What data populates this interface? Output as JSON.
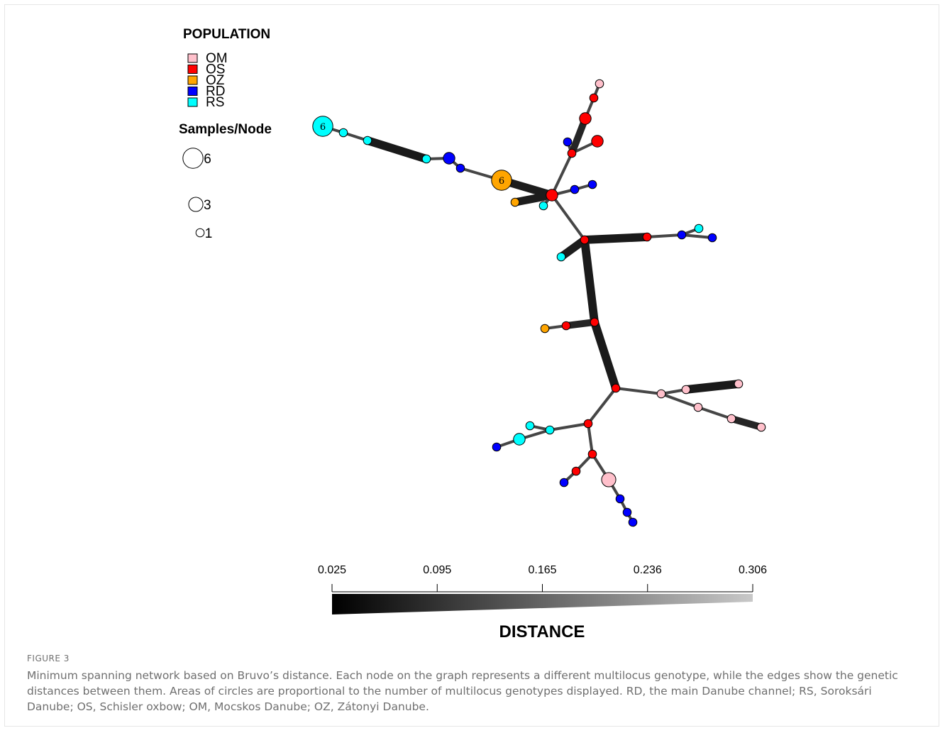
{
  "legend": {
    "population_title": "POPULATION",
    "populations": [
      {
        "code": "OM",
        "color": "#ffc0cb"
      },
      {
        "code": "OS",
        "color": "#ff0000"
      },
      {
        "code": "OZ",
        "color": "#ffa500"
      },
      {
        "code": "RD",
        "color": "#0000ff"
      },
      {
        "code": "RS",
        "color": "#00ffff"
      }
    ],
    "size_title": "Samples/Node",
    "sizes": [
      {
        "label": "6",
        "n": 6
      },
      {
        "label": "3",
        "n": 3
      },
      {
        "label": "1",
        "n": 1
      }
    ]
  },
  "network": {
    "nodes": [
      {
        "id": "n1",
        "pop": "RS",
        "n": 6,
        "label": "6"
      },
      {
        "id": "n2",
        "pop": "RS",
        "n": 1
      },
      {
        "id": "n3",
        "pop": "RS",
        "n": 1
      },
      {
        "id": "n4",
        "pop": "RS",
        "n": 1
      },
      {
        "id": "n5",
        "pop": "RD",
        "n": 2
      },
      {
        "id": "n6",
        "pop": "RD",
        "n": 1
      },
      {
        "id": "n7",
        "pop": "OZ",
        "n": 6,
        "label": "6"
      },
      {
        "id": "n8",
        "pop": "OS",
        "n": 2
      },
      {
        "id": "n9",
        "pop": "OZ",
        "n": 1
      },
      {
        "id": "n10",
        "pop": "RS",
        "n": 1
      },
      {
        "id": "n11",
        "pop": "RD",
        "n": 1
      },
      {
        "id": "n12",
        "pop": "RD",
        "n": 1
      },
      {
        "id": "n13",
        "pop": "OS",
        "n": 1
      },
      {
        "id": "n14",
        "pop": "RD",
        "n": 1
      },
      {
        "id": "n15",
        "pop": "OS",
        "n": 2
      },
      {
        "id": "n16",
        "pop": "OS",
        "n": 2
      },
      {
        "id": "n17",
        "pop": "OS",
        "n": 1
      },
      {
        "id": "n18",
        "pop": "OM",
        "n": 1
      },
      {
        "id": "n19",
        "pop": "OS",
        "n": 1
      },
      {
        "id": "n20",
        "pop": "RS",
        "n": 1
      },
      {
        "id": "n21",
        "pop": "OS",
        "n": 1
      },
      {
        "id": "n22",
        "pop": "RD",
        "n": 1
      },
      {
        "id": "n23",
        "pop": "RS",
        "n": 1
      },
      {
        "id": "n24",
        "pop": "RD",
        "n": 1
      },
      {
        "id": "n25",
        "pop": "OS",
        "n": 1
      },
      {
        "id": "n26",
        "pop": "OS",
        "n": 1
      },
      {
        "id": "n27",
        "pop": "OZ",
        "n": 1
      },
      {
        "id": "n28",
        "pop": "OS",
        "n": 1
      },
      {
        "id": "n29",
        "pop": "OM",
        "n": 1
      },
      {
        "id": "n30",
        "pop": "OM",
        "n": 1
      },
      {
        "id": "n31",
        "pop": "OM",
        "n": 1
      },
      {
        "id": "n32",
        "pop": "OM",
        "n": 1
      },
      {
        "id": "n33",
        "pop": "OM",
        "n": 1
      },
      {
        "id": "n34",
        "pop": "OM",
        "n": 1
      },
      {
        "id": "n35",
        "pop": "OS",
        "n": 1
      },
      {
        "id": "n36",
        "pop": "RS",
        "n": 1
      },
      {
        "id": "n37",
        "pop": "RS",
        "n": 1
      },
      {
        "id": "n38",
        "pop": "RS",
        "n": 2
      },
      {
        "id": "n39",
        "pop": "RD",
        "n": 1
      },
      {
        "id": "n40",
        "pop": "OS",
        "n": 1
      },
      {
        "id": "n41",
        "pop": "OS",
        "n": 1
      },
      {
        "id": "n42",
        "pop": "RD",
        "n": 1
      },
      {
        "id": "n43",
        "pop": "OM",
        "n": 3
      },
      {
        "id": "n44",
        "pop": "RD",
        "n": 1
      },
      {
        "id": "n45",
        "pop": "RD",
        "n": 1
      },
      {
        "id": "n46",
        "pop": "RD",
        "n": 1
      }
    ],
    "edges": [
      {
        "from": "n1",
        "to": "n2",
        "distance": 0.306
      },
      {
        "from": "n2",
        "to": "n3",
        "distance": 0.306
      },
      {
        "from": "n3",
        "to": "n4",
        "distance": 0.03
      },
      {
        "from": "n4",
        "to": "n5",
        "distance": 0.306
      },
      {
        "from": "n5",
        "to": "n6",
        "distance": 0.306
      },
      {
        "from": "n6",
        "to": "n7",
        "distance": 0.306
      },
      {
        "from": "n7",
        "to": "n8",
        "distance": 0.05
      },
      {
        "from": "n8",
        "to": "n9",
        "distance": 0.05
      },
      {
        "from": "n8",
        "to": "n10",
        "distance": 0.306
      },
      {
        "from": "n8",
        "to": "n11",
        "distance": 0.306
      },
      {
        "from": "n11",
        "to": "n12",
        "distance": 0.306
      },
      {
        "from": "n8",
        "to": "n13",
        "distance": 0.306
      },
      {
        "from": "n13",
        "to": "n14",
        "distance": 0.306
      },
      {
        "from": "n13",
        "to": "n15",
        "distance": 0.306
      },
      {
        "from": "n13",
        "to": "n16",
        "distance": 0.1
      },
      {
        "from": "n16",
        "to": "n17",
        "distance": 0.306
      },
      {
        "from": "n17",
        "to": "n18",
        "distance": 0.306
      },
      {
        "from": "n8",
        "to": "n19",
        "distance": 0.306
      },
      {
        "from": "n19",
        "to": "n20",
        "distance": 0.05
      },
      {
        "from": "n19",
        "to": "n21",
        "distance": 0.03
      },
      {
        "from": "n21",
        "to": "n22",
        "distance": 0.306
      },
      {
        "from": "n22",
        "to": "n23",
        "distance": 0.306
      },
      {
        "from": "n22",
        "to": "n24",
        "distance": 0.306
      },
      {
        "from": "n19",
        "to": "n25",
        "distance": 0.03
      },
      {
        "from": "n25",
        "to": "n26",
        "distance": 0.1
      },
      {
        "from": "n26",
        "to": "n27",
        "distance": 0.306
      },
      {
        "from": "n25",
        "to": "n28",
        "distance": 0.03
      },
      {
        "from": "n28",
        "to": "n29",
        "distance": 0.306
      },
      {
        "from": "n29",
        "to": "n30",
        "distance": 0.306
      },
      {
        "from": "n30",
        "to": "n31",
        "distance": 0.03
      },
      {
        "from": "n29",
        "to": "n32",
        "distance": 0.306
      },
      {
        "from": "n32",
        "to": "n33",
        "distance": 0.306
      },
      {
        "from": "n33",
        "to": "n34",
        "distance": 0.1
      },
      {
        "from": "n28",
        "to": "n35",
        "distance": 0.306
      },
      {
        "from": "n35",
        "to": "n36",
        "distance": 0.306
      },
      {
        "from": "n36",
        "to": "n37",
        "distance": 0.306
      },
      {
        "from": "n36",
        "to": "n38",
        "distance": 0.306
      },
      {
        "from": "n38",
        "to": "n39",
        "distance": 0.306
      },
      {
        "from": "n35",
        "to": "n40",
        "distance": 0.306
      },
      {
        "from": "n40",
        "to": "n41",
        "distance": 0.306
      },
      {
        "from": "n41",
        "to": "n42",
        "distance": 0.306
      },
      {
        "from": "n40",
        "to": "n43",
        "distance": 0.306
      },
      {
        "from": "n43",
        "to": "n44",
        "distance": 0.306
      },
      {
        "from": "n44",
        "to": "n45",
        "distance": 0.306
      },
      {
        "from": "n45",
        "to": "n46",
        "distance": 0.306
      }
    ]
  },
  "distance_scale": {
    "title": "DISTANCE",
    "ticks": [
      "0.025",
      "0.095",
      "0.165",
      "0.236",
      "0.306"
    ]
  },
  "caption": {
    "label": "FIGURE 3",
    "text": "Minimum spanning network based on Bruvo’s distance. Each node on the graph represents a different multilocus genotype, while the edges show the genetic distances between them. Areas of circles are proportional to the number of multilocus genotypes displayed. RD, the main Danube channel; RS, Soroksári Danube; OS, Schisler oxbow; OM, Mocskos Danube; OZ, Zátonyi Danube."
  }
}
